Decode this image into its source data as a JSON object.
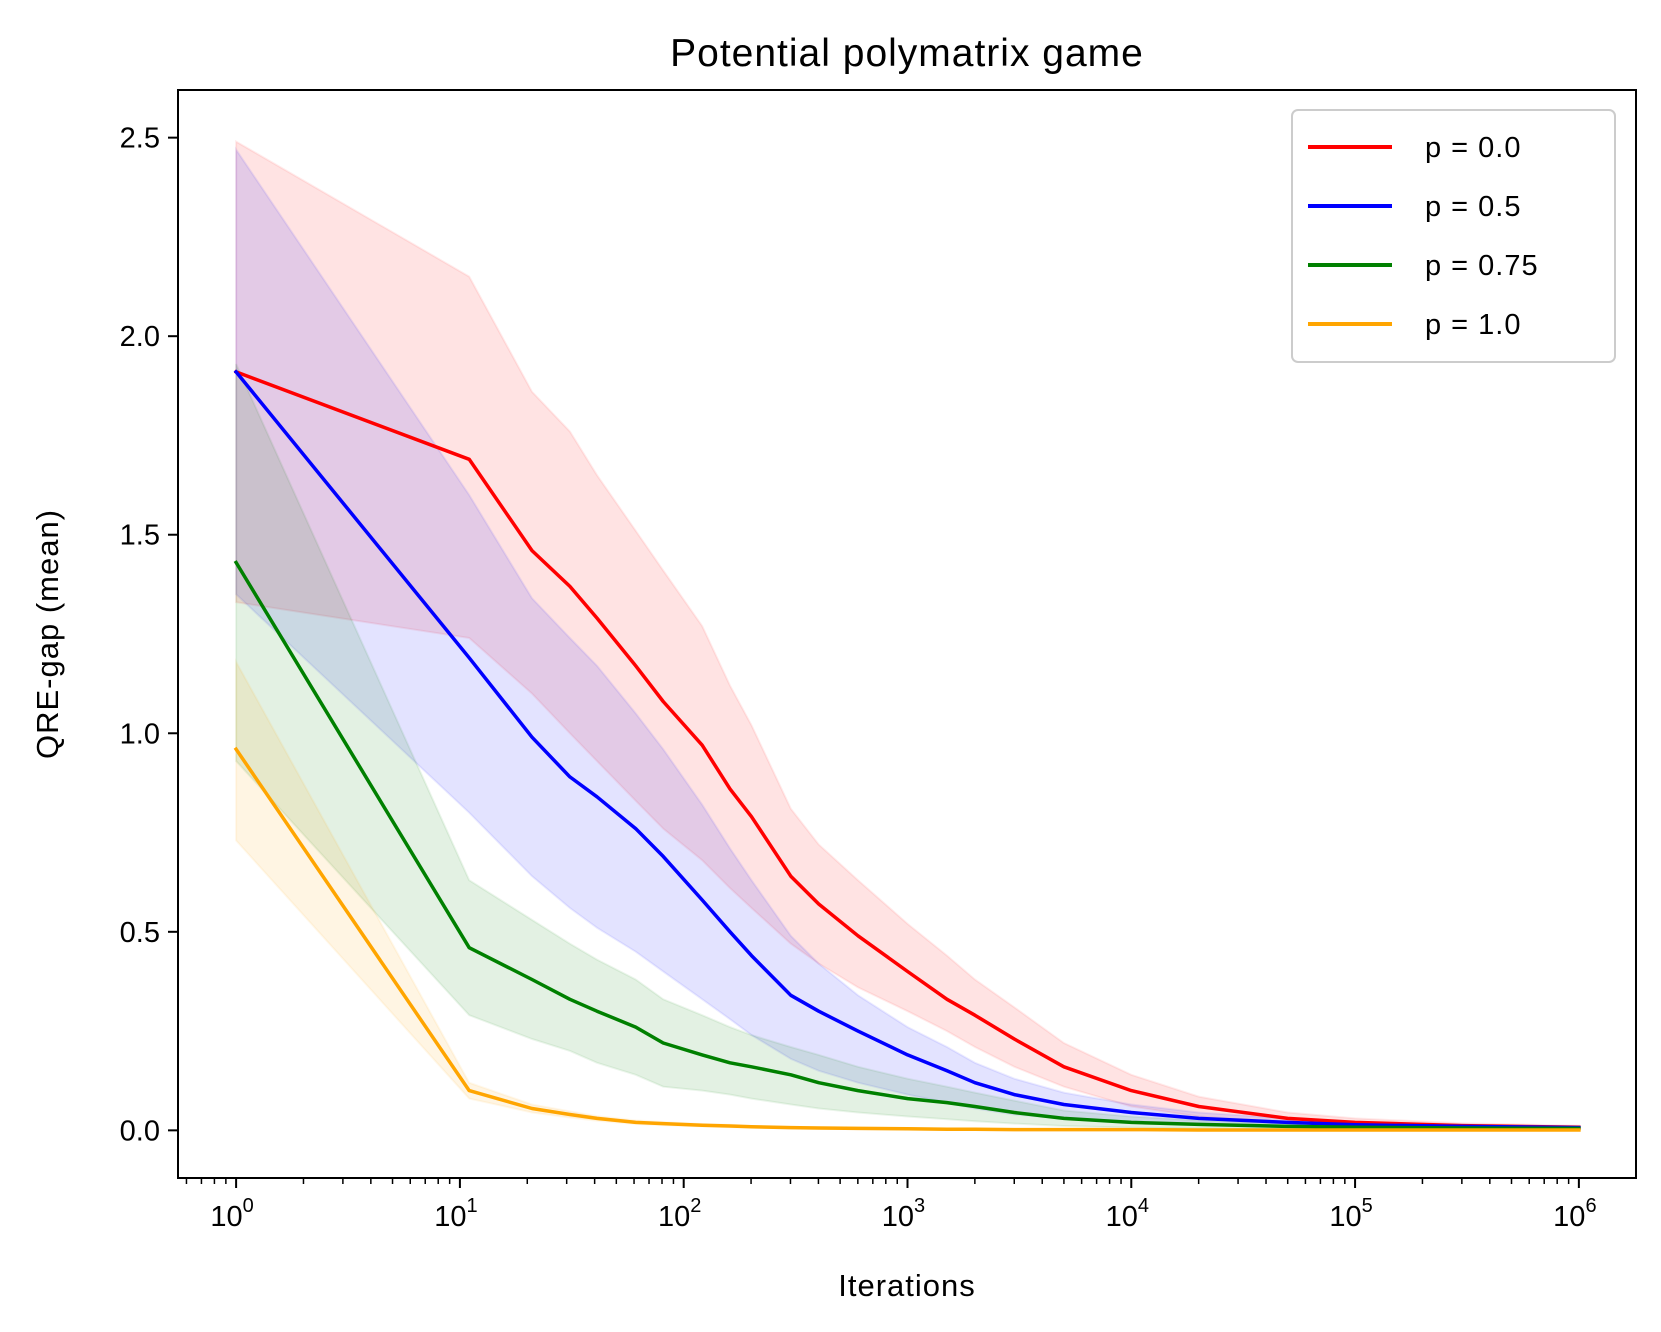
{
  "chart_data": {
    "type": "line",
    "title": "Potential polymatrix game",
    "xlabel": "Iterations",
    "ylabel": "QRE-gap (mean)",
    "xscale": "log",
    "xlim": [
      0.55,
      1800000
    ],
    "ylim": [
      -0.12,
      2.62
    ],
    "x_ticks": [
      {
        "base": "10",
        "exp": "0",
        "value": 1
      },
      {
        "base": "10",
        "exp": "1",
        "value": 10
      },
      {
        "base": "10",
        "exp": "2",
        "value": 100
      },
      {
        "base": "10",
        "exp": "3",
        "value": 1000
      },
      {
        "base": "10",
        "exp": "4",
        "value": 10000
      },
      {
        "base": "10",
        "exp": "5",
        "value": 100000
      },
      {
        "base": "10",
        "exp": "6",
        "value": 1000000
      }
    ],
    "y_ticks": [
      "0.0",
      "0.5",
      "1.0",
      "1.5",
      "2.0",
      "2.5"
    ],
    "grid": false,
    "legend_position": "top-right",
    "x": [
      1,
      11,
      21,
      31,
      41,
      61,
      81,
      121,
      161,
      201,
      301,
      401,
      601,
      1001,
      1501,
      2001,
      3001,
      5001,
      10001,
      20001,
      50001,
      100001,
      300001,
      1000001
    ],
    "series": [
      {
        "name": "p =  0.0",
        "color": "#ff0000",
        "band_color": "#ff0000",
        "values": [
          1.91,
          1.69,
          1.46,
          1.37,
          1.29,
          1.17,
          1.08,
          0.97,
          0.86,
          0.79,
          0.64,
          0.57,
          0.49,
          0.4,
          0.33,
          0.29,
          0.23,
          0.16,
          0.1,
          0.06,
          0.03,
          0.02,
          0.012,
          0.008
        ],
        "lower": [
          1.33,
          1.24,
          1.1,
          1.0,
          0.93,
          0.83,
          0.76,
          0.68,
          0.61,
          0.56,
          0.47,
          0.42,
          0.36,
          0.3,
          0.25,
          0.21,
          0.16,
          0.11,
          0.06,
          0.035,
          0.02,
          0.012,
          0.008,
          0.005
        ],
        "upper": [
          2.49,
          2.15,
          1.86,
          1.76,
          1.65,
          1.51,
          1.41,
          1.27,
          1.12,
          1.02,
          0.81,
          0.72,
          0.63,
          0.52,
          0.44,
          0.38,
          0.31,
          0.22,
          0.14,
          0.085,
          0.045,
          0.03,
          0.018,
          0.012
        ]
      },
      {
        "name": "p =  0.5",
        "color": "#0000ff",
        "band_color": "#0000ff",
        "values": [
          1.91,
          1.19,
          0.99,
          0.89,
          0.84,
          0.76,
          0.69,
          0.58,
          0.5,
          0.44,
          0.34,
          0.3,
          0.25,
          0.19,
          0.15,
          0.12,
          0.09,
          0.065,
          0.045,
          0.03,
          0.02,
          0.014,
          0.01,
          0.007
        ],
        "lower": [
          1.35,
          0.8,
          0.64,
          0.56,
          0.51,
          0.45,
          0.4,
          0.33,
          0.28,
          0.24,
          0.18,
          0.15,
          0.12,
          0.09,
          0.07,
          0.055,
          0.04,
          0.03,
          0.02,
          0.014,
          0.009,
          0.006,
          0.004,
          0.003
        ],
        "upper": [
          2.47,
          1.6,
          1.34,
          1.24,
          1.17,
          1.05,
          0.96,
          0.82,
          0.71,
          0.63,
          0.49,
          0.42,
          0.34,
          0.26,
          0.21,
          0.17,
          0.13,
          0.095,
          0.065,
          0.045,
          0.03,
          0.02,
          0.014,
          0.01
        ]
      },
      {
        "name": "p =  0.75",
        "color": "#008000",
        "band_color": "#008000",
        "values": [
          1.43,
          0.46,
          0.38,
          0.33,
          0.3,
          0.26,
          0.22,
          0.19,
          0.17,
          0.16,
          0.14,
          0.12,
          0.1,
          0.08,
          0.07,
          0.06,
          0.045,
          0.03,
          0.02,
          0.015,
          0.01,
          0.008,
          0.006,
          0.005
        ],
        "lower": [
          0.93,
          0.29,
          0.23,
          0.2,
          0.17,
          0.14,
          0.11,
          0.1,
          0.09,
          0.08,
          0.065,
          0.055,
          0.045,
          0.035,
          0.028,
          0.023,
          0.017,
          0.011,
          0.007,
          0.005,
          0.004,
          0.003,
          0.002,
          0.002
        ],
        "upper": [
          1.93,
          0.63,
          0.53,
          0.47,
          0.43,
          0.38,
          0.33,
          0.29,
          0.26,
          0.24,
          0.21,
          0.19,
          0.16,
          0.13,
          0.11,
          0.095,
          0.075,
          0.05,
          0.035,
          0.025,
          0.017,
          0.013,
          0.01,
          0.008
        ]
      },
      {
        "name": "p =  1.0",
        "color": "#ffa500",
        "band_color": "#ffa500",
        "values": [
          0.96,
          0.1,
          0.055,
          0.04,
          0.03,
          0.02,
          0.017,
          0.013,
          0.011,
          0.009,
          0.007,
          0.006,
          0.005,
          0.004,
          0.003,
          0.003,
          0.002,
          0.002,
          0.002,
          0.001,
          0.001,
          0.001,
          0.001,
          0.001
        ],
        "lower": [
          0.73,
          0.08,
          0.045,
          0.032,
          0.024,
          0.016,
          0.013,
          0.01,
          0.008,
          0.007,
          0.005,
          0.004,
          0.003,
          0.002,
          0.002,
          0.001,
          0.001,
          0.001,
          0.0,
          0.0,
          0.0,
          0.0,
          0.0,
          0.0
        ],
        "upper": [
          1.18,
          0.12,
          0.065,
          0.048,
          0.036,
          0.025,
          0.021,
          0.016,
          0.014,
          0.011,
          0.009,
          0.008,
          0.007,
          0.006,
          0.004,
          0.004,
          0.003,
          0.003,
          0.003,
          0.002,
          0.002,
          0.002,
          0.002,
          0.002
        ]
      }
    ]
  }
}
